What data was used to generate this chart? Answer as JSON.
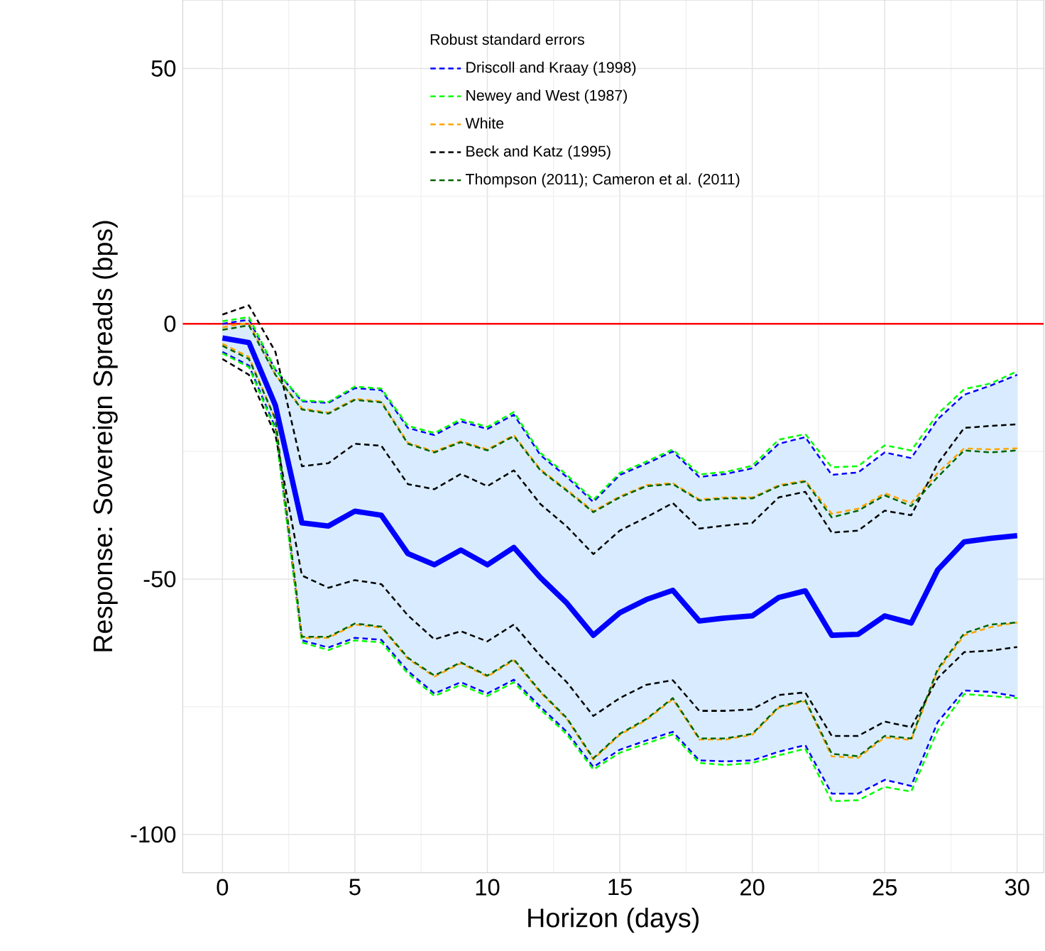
{
  "chart_data": {
    "type": "line",
    "xlabel": "Horizon (days)",
    "ylabel": "Response: Sovereign Spreads (bps)",
    "legend_title": "Robust standard errors",
    "legend": "top",
    "grid": true,
    "x": [
      0,
      1,
      2,
      3,
      4,
      5,
      6,
      7,
      8,
      9,
      10,
      11,
      12,
      13,
      14,
      15,
      16,
      17,
      18,
      19,
      20,
      21,
      22,
      23,
      24,
      25,
      26,
      27,
      28,
      29,
      30
    ],
    "xlim": [
      -1.5,
      31
    ],
    "ylim": [
      -107.5,
      63.4
    ],
    "xticks": [
      0,
      5,
      10,
      15,
      20,
      25,
      30
    ],
    "yticks": [
      -100,
      -50,
      0,
      50
    ],
    "ref_lines": [
      {
        "axis": "y",
        "value": 0,
        "color": "#ff0000"
      }
    ],
    "series": [
      {
        "name": "Driscoll and Kraay (1998)",
        "color": "#0000ff",
        "line_style": "dashed",
        "values": [
          0,
          0.8,
          -9,
          -15.2,
          -15.5,
          -12.6,
          -13,
          -20.4,
          -21.8,
          -19.1,
          -20.6,
          -17.8,
          -25.7,
          -30,
          -34.9,
          -29.6,
          -27.4,
          -25,
          -30,
          -29.4,
          -28.3,
          -23.5,
          -22.2,
          -29.6,
          -29.1,
          -25.2,
          -26.3,
          -18.7,
          -13.9,
          -12.1,
          -10
        ]
      },
      {
        "color": "#0000ff",
        "line_style": "dashed",
        "values": [
          -5.5,
          -8.2,
          -20.4,
          -62,
          -63.4,
          -61.5,
          -61.9,
          -68,
          -72.4,
          -70.2,
          -72.4,
          -69.7,
          -75,
          -79.9,
          -86.8,
          -83.4,
          -81.6,
          -79.9,
          -85.5,
          -85.7,
          -85.5,
          -83.8,
          -82.5,
          -92,
          -92,
          -89.3,
          -90.5,
          -78,
          -71.8,
          -72.1,
          -73
        ]
      },
      {
        "name": "Newey and West (1987)",
        "color": "#00ff00",
        "line_style": "dashed",
        "values": [
          0.5,
          1.3,
          -9,
          -15,
          -15.3,
          -12.3,
          -12.7,
          -20,
          -21.4,
          -18.7,
          -20.2,
          -17.3,
          -25.3,
          -29.6,
          -34.5,
          -29.2,
          -27,
          -24.6,
          -29.5,
          -29,
          -27.8,
          -22.7,
          -21.6,
          -28.1,
          -27.9,
          -23.8,
          -24.8,
          -17.7,
          -12.8,
          -11.7,
          -9.3
        ]
      },
      {
        "color": "#00ff00",
        "line_style": "dashed",
        "values": [
          -5.8,
          -8.5,
          -20.8,
          -62.4,
          -63.9,
          -62,
          -62.4,
          -68.5,
          -72.9,
          -70.7,
          -72.9,
          -70.2,
          -75.5,
          -80.4,
          -87.3,
          -84,
          -82.2,
          -80.4,
          -86,
          -86.4,
          -86,
          -84.5,
          -83.2,
          -93.5,
          -93.3,
          -90.7,
          -91.6,
          -79.6,
          -72.5,
          -72.9,
          -73.3
        ]
      },
      {
        "name": "White",
        "color": "#ffa500",
        "line_style": "dashed",
        "values": [
          -0.7,
          0.2,
          -10,
          -16.6,
          -17.4,
          -14.7,
          -15.2,
          -23.3,
          -25,
          -23,
          -24.6,
          -21.8,
          -28.5,
          -32.5,
          -36.7,
          -33.8,
          -31.6,
          -31.2,
          -34.4,
          -34,
          -34,
          -31.6,
          -30.7,
          -37.2,
          -36.2,
          -33.2,
          -35.1,
          -29.2,
          -24.4,
          -24.6,
          -24.4
        ]
      },
      {
        "color": "#ffa500",
        "line_style": "dashed",
        "values": [
          -3.9,
          -6.5,
          -18.7,
          -61.5,
          -61.5,
          -58.9,
          -59.5,
          -65.6,
          -69.1,
          -66.5,
          -69.1,
          -65.9,
          -72.2,
          -77.4,
          -85.3,
          -80.5,
          -77.6,
          -73.5,
          -81.4,
          -81.4,
          -80.5,
          -75.2,
          -73.9,
          -84.7,
          -85,
          -81,
          -81.5,
          -68,
          -61,
          -59.4,
          -58.5
        ]
      },
      {
        "name": "Beck and Katz (1995)",
        "color": "#000000",
        "line_style": "dashed",
        "values": [
          1.8,
          3.6,
          -5.5,
          -27.9,
          -27.3,
          -23.5,
          -23.9,
          -31.4,
          -32.4,
          -29.4,
          -31.8,
          -28.7,
          -35.3,
          -39.7,
          -45.1,
          -40.5,
          -37.9,
          -35.1,
          -40.1,
          -39.5,
          -39,
          -34,
          -32.9,
          -40.9,
          -40.5,
          -36.6,
          -37.5,
          -27.4,
          -20.4,
          -20,
          -19.7
        ]
      },
      {
        "color": "#000000",
        "line_style": "dashed",
        "values": [
          -6.9,
          -10,
          -21.8,
          -49.3,
          -51.7,
          -50.2,
          -51,
          -57.1,
          -61.8,
          -60.2,
          -62.2,
          -58.9,
          -65,
          -70.2,
          -76.8,
          -73.3,
          -70.7,
          -69.8,
          -75.8,
          -75.8,
          -75.5,
          -72.7,
          -72.2,
          -80.7,
          -80.7,
          -77.9,
          -79,
          -69.4,
          -64.3,
          -64,
          -63.3
        ]
      },
      {
        "name": "Thompson (2011); Cameron et al. (2011)",
        "color": "#006400",
        "line_style": "dashed",
        "values": [
          -1.2,
          -0.3,
          -10,
          -16.8,
          -17.6,
          -14.9,
          -15.4,
          -23.5,
          -25.2,
          -23.2,
          -24.8,
          -22,
          -28.7,
          -32.7,
          -36.9,
          -34,
          -31.8,
          -31.4,
          -34.6,
          -34.2,
          -34.2,
          -31.8,
          -30.9,
          -37.9,
          -36.6,
          -33.6,
          -35.7,
          -30,
          -24.8,
          -25.2,
          -24.8
        ]
      },
      {
        "color": "#006400",
        "line_style": "dashed",
        "values": [
          -4.3,
          -6.9,
          -18.7,
          -61.3,
          -61.3,
          -58.7,
          -59.3,
          -65.4,
          -68.9,
          -66.3,
          -68.9,
          -65.7,
          -72,
          -77.2,
          -85.1,
          -80.3,
          -77.4,
          -73.3,
          -81.2,
          -81.2,
          -80.3,
          -75,
          -73.7,
          -84.2,
          -84.7,
          -80.7,
          -81.2,
          -67.6,
          -60.6,
          -58.9,
          -58.5
        ]
      },
      {
        "color": "#0000ff",
        "line_style": "solid",
        "values": [
          -2.8,
          -3.7,
          -16,
          -39,
          -39.6,
          -36.7,
          -37.5,
          -45,
          -47.2,
          -44.3,
          -47.2,
          -43.8,
          -49.7,
          -54.7,
          -61,
          -56.6,
          -54,
          -52.2,
          -58.2,
          -57.6,
          -57.2,
          -53.6,
          -52.3,
          -61,
          -60.8,
          -57.2,
          -58.6,
          -48.2,
          -42.7,
          -42,
          -41.5
        ],
        "lower": [
          -5.5,
          -8.2,
          -20.4,
          -62,
          -63.4,
          -61.5,
          -61.9,
          -68,
          -72.4,
          -70.2,
          -72.4,
          -69.7,
          -75,
          -79.9,
          -86.8,
          -83.4,
          -81.6,
          -79.9,
          -85.5,
          -85.7,
          -85.5,
          -83.8,
          -82.5,
          -92,
          -92,
          -89.3,
          -90.5,
          -78,
          -71.8,
          -72.1,
          -73
        ],
        "upper": [
          0,
          0.8,
          -9,
          -15.2,
          -15.5,
          -12.6,
          -13,
          -20.4,
          -21.8,
          -19.1,
          -20.6,
          -17.8,
          -25.7,
          -30,
          -34.9,
          -29.6,
          -27.4,
          -25,
          -30,
          -29.4,
          -28.3,
          -23.5,
          -22.2,
          -29.6,
          -29.1,
          -25.2,
          -26.3,
          -18.7,
          -13.9,
          -12.1,
          -10
        ]
      }
    ]
  }
}
